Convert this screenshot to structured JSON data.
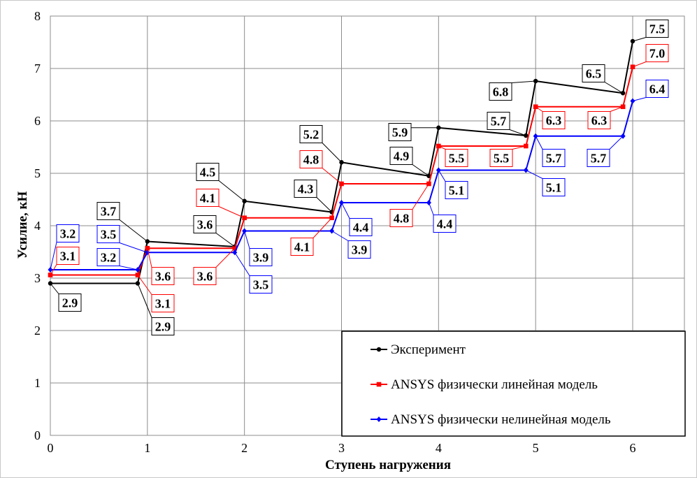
{
  "chart_data": {
    "type": "line",
    "xlabel": "Ступень нагружения",
    "ylabel": "Усилие, кН",
    "xlim": [
      0,
      6
    ],
    "ylim": [
      0,
      8
    ],
    "x_ticks": [
      0,
      1,
      2,
      3,
      4,
      5,
      6
    ],
    "y_ticks": [
      0,
      1,
      2,
      3,
      4,
      5,
      6,
      7,
      8
    ],
    "grid": true,
    "legend_position": "bottom-right",
    "series": [
      {
        "name": "Эксперимент",
        "color": "#000000",
        "marker": "circle",
        "x": [
          0,
          0.9,
          1,
          1.9,
          2,
          2.9,
          3,
          3.9,
          4,
          4.9,
          5,
          5.9,
          6
        ],
        "y": [
          2.9,
          2.9,
          3.7,
          3.6,
          4.47,
          4.26,
          5.21,
          4.95,
          5.87,
          5.72,
          6.76,
          6.53,
          7.52
        ],
        "labels": [
          {
            "text": "2.9",
            "x": 0,
            "y": 2.9
          },
          {
            "text": "2.9",
            "x": 0.9,
            "y": 2.9
          },
          {
            "text": "3.7",
            "x": 1,
            "y": 3.7
          },
          {
            "text": "3.6",
            "x": 1.9,
            "y": 3.6
          },
          {
            "text": "4.5",
            "x": 2,
            "y": 4.47
          },
          {
            "text": "4.3",
            "x": 2.9,
            "y": 4.26
          },
          {
            "text": "5.2",
            "x": 3,
            "y": 5.21
          },
          {
            "text": "4.9",
            "x": 3.9,
            "y": 4.95
          },
          {
            "text": "5.9",
            "x": 4,
            "y": 5.87
          },
          {
            "text": "5.7",
            "x": 4.9,
            "y": 5.72
          },
          {
            "text": "6.8",
            "x": 5,
            "y": 6.76
          },
          {
            "text": "6.5",
            "x": 5.9,
            "y": 6.53
          },
          {
            "text": "7.5",
            "x": 6,
            "y": 7.52
          }
        ]
      },
      {
        "name": "ANSYS физически линейная модель",
        "color": "#ff0000",
        "marker": "square",
        "x": [
          0,
          0.9,
          1,
          1.9,
          2,
          2.9,
          3,
          3.9,
          4,
          4.9,
          5,
          5.9,
          6
        ],
        "y": [
          3.06,
          3.06,
          3.57,
          3.57,
          4.15,
          4.15,
          4.8,
          4.8,
          5.52,
          5.52,
          6.27,
          6.27,
          7.03
        ],
        "labels": [
          {
            "text": "3.1",
            "x": 0,
            "y": 3.06
          },
          {
            "text": "3.1",
            "x": 0.9,
            "y": 3.06
          },
          {
            "text": "3.6",
            "x": 1,
            "y": 3.57
          },
          {
            "text": "3.6",
            "x": 1.9,
            "y": 3.57
          },
          {
            "text": "4.1",
            "x": 2,
            "y": 4.15
          },
          {
            "text": "4.1",
            "x": 2.9,
            "y": 4.15
          },
          {
            "text": "4.8",
            "x": 3,
            "y": 4.8
          },
          {
            "text": "4.8",
            "x": 3.9,
            "y": 4.8
          },
          {
            "text": "5.5",
            "x": 4,
            "y": 5.52
          },
          {
            "text": "5.5",
            "x": 4.9,
            "y": 5.52
          },
          {
            "text": "6.3",
            "x": 5,
            "y": 6.27
          },
          {
            "text": "6.3",
            "x": 5.9,
            "y": 6.27
          },
          {
            "text": "7.0",
            "x": 6,
            "y": 7.03
          }
        ]
      },
      {
        "name": "ANSYS физически нелинейная модель",
        "color": "#0000ff",
        "marker": "diamond",
        "x": [
          0,
          0.9,
          1,
          1.9,
          2,
          2.9,
          3,
          3.9,
          4,
          4.9,
          5,
          5.9,
          6
        ],
        "y": [
          3.16,
          3.16,
          3.49,
          3.49,
          3.9,
          3.9,
          4.44,
          4.44,
          5.06,
          5.06,
          5.71,
          5.71,
          6.38
        ],
        "labels": [
          {
            "text": "3.2",
            "x": 0,
            "y": 3.16
          },
          {
            "text": "3.2",
            "x": 0.9,
            "y": 3.16
          },
          {
            "text": "3.5",
            "x": 1,
            "y": 3.49
          },
          {
            "text": "3.5",
            "x": 1.9,
            "y": 3.49
          },
          {
            "text": "3.9",
            "x": 2,
            "y": 3.9
          },
          {
            "text": "3.9",
            "x": 2.9,
            "y": 3.9
          },
          {
            "text": "4.4",
            "x": 3,
            "y": 4.44
          },
          {
            "text": "4.4",
            "x": 3.9,
            "y": 4.44
          },
          {
            "text": "5.1",
            "x": 4,
            "y": 5.06
          },
          {
            "text": "5.1",
            "x": 4.9,
            "y": 5.06
          },
          {
            "text": "5.7",
            "x": 5,
            "y": 5.71
          },
          {
            "text": "5.7",
            "x": 5.9,
            "y": 5.71
          },
          {
            "text": "6.4",
            "x": 6,
            "y": 6.38
          }
        ]
      }
    ]
  }
}
